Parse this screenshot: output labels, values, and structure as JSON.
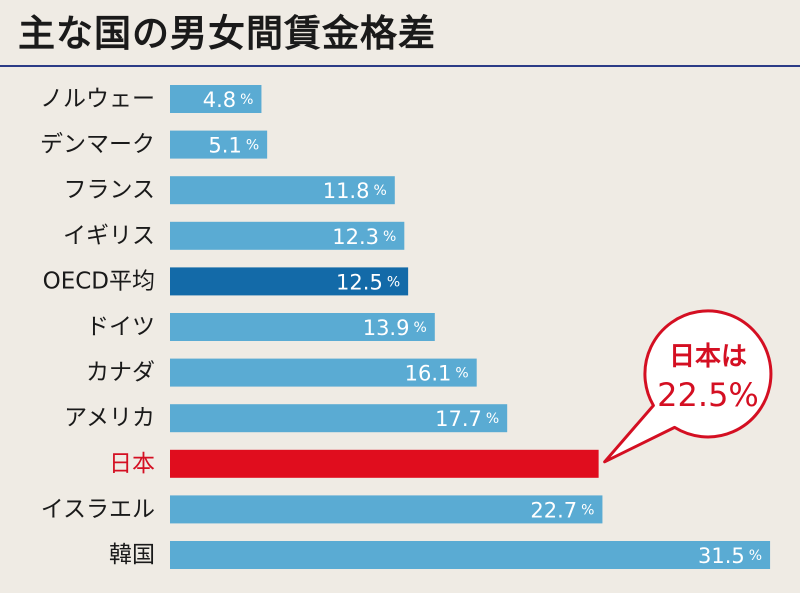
{
  "chart_data": {
    "type": "bar",
    "orientation": "horizontal",
    "title": "主な国の男女間賃金格差",
    "categories": [
      "ノルウェー",
      "デンマーク",
      "フランス",
      "イギリス",
      "OECD平均",
      "ドイツ",
      "カナダ",
      "アメリカ",
      "日本",
      "イスラエル",
      "韓国"
    ],
    "values": [
      4.8,
      5.1,
      11.8,
      12.3,
      12.5,
      13.9,
      16.1,
      17.7,
      22.5,
      22.7,
      31.5
    ],
    "value_labels": [
      "4.8",
      "5.1",
      "11.8",
      "12.3",
      "12.5",
      "13.9",
      "16.1",
      "17.7",
      "",
      "22.7",
      "31.5"
    ],
    "unit": "%",
    "highlight": {
      "category": "日本",
      "callout_line1": "日本は",
      "callout_line2": "22.5%"
    },
    "colors": {
      "default_bar": "#5aabd3",
      "oecd_bar": "#136aa8",
      "highlight_bar": "#e00d1e",
      "highlight_text": "#d40f22",
      "label_text": "#1a1a1a",
      "background": "#efebe4",
      "rule": "#2b3b86"
    },
    "grid": false,
    "legend": "none"
  }
}
